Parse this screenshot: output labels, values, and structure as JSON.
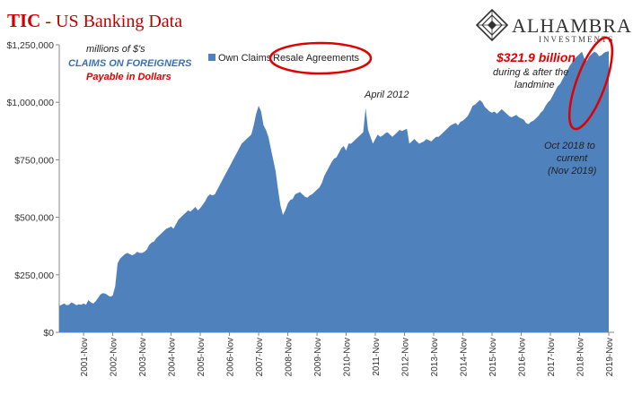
{
  "title": {
    "main": "TIC",
    "rest": " - US Banking Data"
  },
  "logo": {
    "name": "Alhambra",
    "sub": "Investments"
  },
  "units_note": "millions of $'s",
  "subtitle": "CLAIMS ON FOREIGNERS",
  "payable": "Payable in Dollars",
  "legend": {
    "own_claims": "Own Claims",
    "resale": "Resale Agreements"
  },
  "annotations": {
    "peak": "April 2012",
    "amount": "$321.9 billion",
    "amount_line1": "during & after the",
    "amount_line2": "landmine",
    "period_line1": "Oct 2018 to",
    "period_line2": "current",
    "period_line3": "(Nov 2019)"
  },
  "colors": {
    "area": "#4f81bd",
    "accent": "#e00000",
    "title": "#d40000"
  },
  "chart_data": {
    "type": "area",
    "title": "TIC - US Banking Data",
    "ylabel": "",
    "xlabel": "",
    "ylim": [
      0,
      1250000
    ],
    "yticks": [
      0,
      250000,
      500000,
      750000,
      1000000,
      1250000
    ],
    "ytick_labels": [
      "$0",
      "$250,000",
      "$500,000",
      "$750,000",
      "$1,000,000",
      "$1,250,000"
    ],
    "xtick_labels": [
      "2001-Nov",
      "2002-Nov",
      "2003-Nov",
      "2004-Nov",
      "2005-Nov",
      "2006-Nov",
      "2007-Nov",
      "2008-Nov",
      "2009-Nov",
      "2010-Nov",
      "2011-Nov",
      "2012-Nov",
      "2013-Nov",
      "2014-Nov",
      "2015-Nov",
      "2016-Nov",
      "2017-Nov",
      "2018-Nov",
      "2019-Nov"
    ],
    "grid": false,
    "legend_position": "top",
    "series": [
      {
        "name": "Own Claims",
        "x_start": "2001-01",
        "x_end": "2019-11",
        "values": [
          115000,
          120000,
          125000,
          118000,
          120000,
          130000,
          125000,
          118000,
          122000,
          120000,
          125000,
          120000,
          140000,
          130000,
          125000,
          135000,
          150000,
          165000,
          170000,
          168000,
          160000,
          155000,
          160000,
          200000,
          300000,
          320000,
          330000,
          340000,
          345000,
          340000,
          335000,
          340000,
          350000,
          345000,
          345000,
          350000,
          360000,
          380000,
          390000,
          395000,
          410000,
          420000,
          430000,
          440000,
          450000,
          455000,
          460000,
          450000,
          470000,
          490000,
          500000,
          510000,
          520000,
          530000,
          525000,
          535000,
          545000,
          530000,
          540000,
          555000,
          570000,
          590000,
          600000,
          595000,
          600000,
          620000,
          640000,
          660000,
          680000,
          700000,
          720000,
          740000,
          760000,
          780000,
          800000,
          820000,
          830000,
          840000,
          850000,
          860000,
          900000,
          950000,
          985000,
          960000,
          900000,
          880000,
          850000,
          800000,
          750000,
          700000,
          620000,
          550000,
          510000,
          530000,
          560000,
          575000,
          580000,
          600000,
          605000,
          610000,
          600000,
          590000,
          585000,
          595000,
          600000,
          610000,
          620000,
          630000,
          650000,
          680000,
          700000,
          720000,
          740000,
          755000,
          760000,
          780000,
          800000,
          810000,
          790000,
          820000,
          820000,
          830000,
          840000,
          850000,
          860000,
          870000,
          975000,
          880000,
          850000,
          820000,
          840000,
          860000,
          850000,
          855000,
          865000,
          870000,
          860000,
          850000,
          860000,
          870000,
          880000,
          875000,
          880000,
          885000,
          820000,
          830000,
          840000,
          830000,
          820000,
          825000,
          830000,
          840000,
          835000,
          830000,
          840000,
          850000,
          850000,
          860000,
          870000,
          880000,
          890000,
          900000,
          905000,
          910000,
          900000,
          915000,
          920000,
          930000,
          940000,
          960000,
          985000,
          990000,
          1000000,
          1010000,
          1000000,
          980000,
          970000,
          960000,
          955000,
          960000,
          950000,
          960000,
          970000,
          960000,
          950000,
          940000,
          935000,
          940000,
          945000,
          935000,
          930000,
          925000,
          910000,
          905000,
          915000,
          920000,
          930000,
          940000,
          955000,
          965000,
          985000,
          1000000,
          1010000,
          1030000,
          1050000,
          1070000,
          1080000,
          1100000,
          1120000,
          1140000,
          1160000,
          1175000,
          1190000,
          1200000,
          1210000,
          1220000,
          1190000,
          1180000,
          1200000,
          1210000,
          1220000,
          1215000,
          1200000,
          1205000,
          1215000,
          1220000,
          1221900
        ]
      }
    ]
  }
}
